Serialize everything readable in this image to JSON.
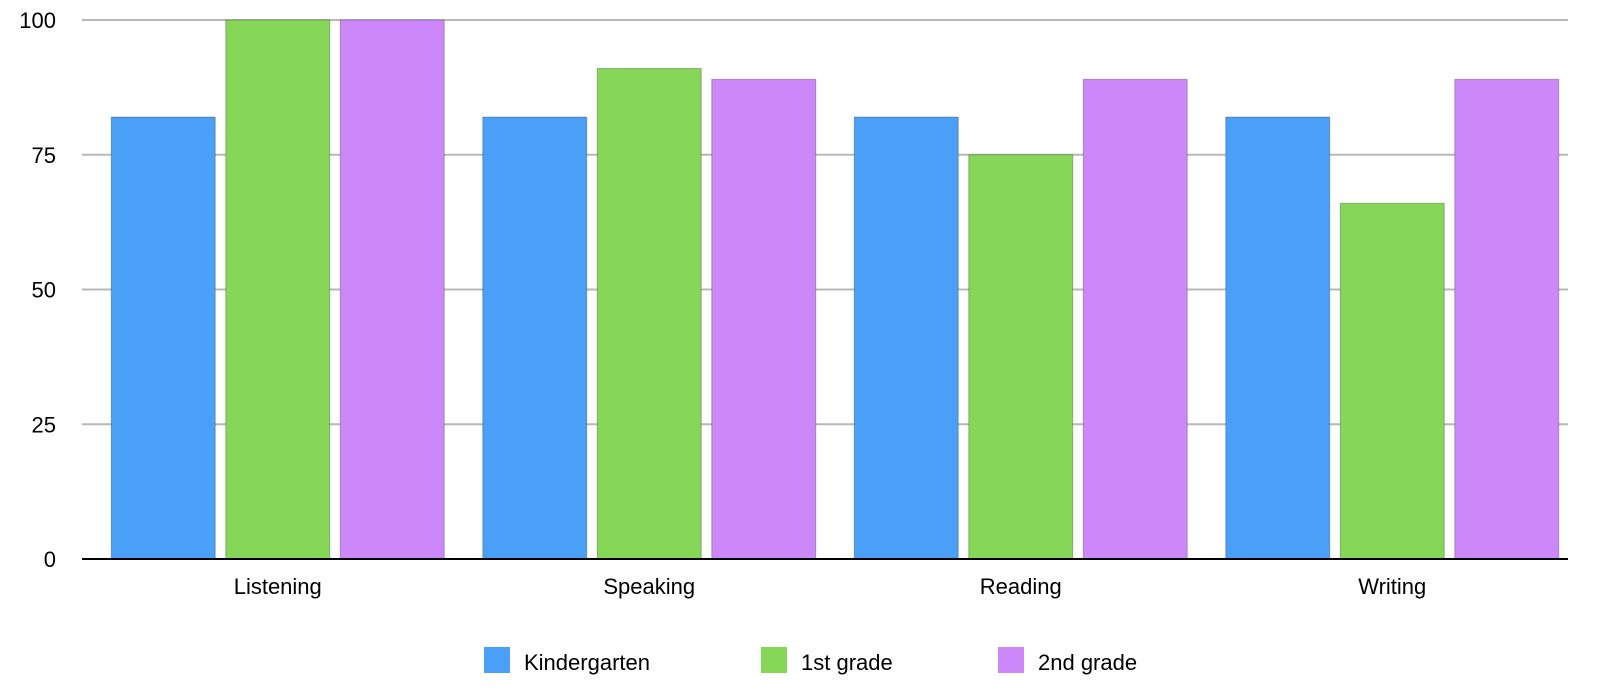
{
  "chart_data": {
    "type": "bar",
    "categories": [
      "Listening",
      "Speaking",
      "Reading",
      "Writing"
    ],
    "series": [
      {
        "name": "Kindergarten",
        "color": "#4aa0f7",
        "values": [
          82,
          82,
          82,
          82
        ]
      },
      {
        "name": "1st grade",
        "color": "#86d657",
        "values": [
          100,
          91,
          75,
          66
        ]
      },
      {
        "name": "2nd grade",
        "color": "#cc88f8",
        "values": [
          100,
          89,
          89,
          89
        ]
      }
    ],
    "y_ticks": [
      "0",
      "25",
      "50",
      "75",
      "100"
    ],
    "ylim": [
      0,
      100
    ],
    "grid": true,
    "legend_position": "bottom-center"
  }
}
